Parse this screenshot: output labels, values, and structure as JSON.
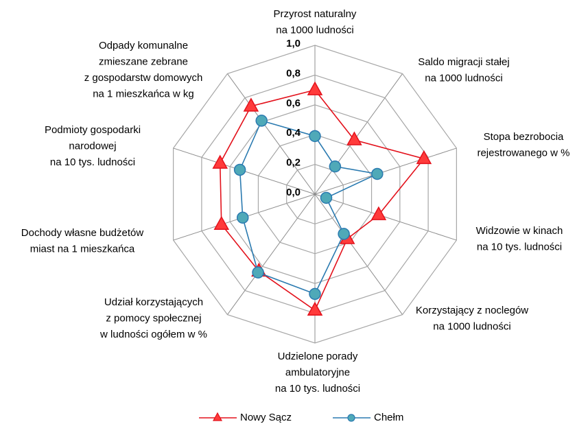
{
  "chart_data": {
    "type": "radar",
    "categories": [
      [
        "Przyrost naturalny",
        "na 1000 ludności"
      ],
      [
        "Saldo migracji stałej",
        "na 1000 ludności"
      ],
      [
        "Stopa bezrobocia",
        "rejestrowanego w %"
      ],
      [
        "Widzowie w kinach",
        "na 10 tys. ludności"
      ],
      [
        "Korzystający z noclegów",
        "na 1000 ludności"
      ],
      [
        "Udzielone porady",
        "ambulatoryjne",
        "na 10 tys. ludności"
      ],
      [
        "Udział korzystających",
        "z pomocy społecznej",
        "w ludności ogółem w %"
      ],
      [
        "Dochody własne budżetów",
        "miast na 1 mieszkańca"
      ],
      [
        "Podmioty gospodarki",
        "narodowej",
        "na 10 tys. ludności"
      ],
      [
        "Odpady komunalne",
        "zmieszane zebrane",
        "z gospodarstw domowych",
        "na 1 mieszkańca w kg"
      ]
    ],
    "series": [
      {
        "name": "Nowy Sącz",
        "color": "#e3111b",
        "marker": "triangle",
        "marker_color": "#ff3b3b",
        "values": [
          0.7,
          0.45,
          0.77,
          0.45,
          0.37,
          0.78,
          0.64,
          0.66,
          0.67,
          0.73
        ]
      },
      {
        "name": "Chełm",
        "color": "#2a7ab0",
        "marker": "circle",
        "marker_color": "#4fa9b8",
        "values": [
          0.39,
          0.23,
          0.44,
          0.08,
          0.33,
          0.67,
          0.65,
          0.51,
          0.53,
          0.61
        ]
      }
    ],
    "rlim": [
      0,
      1
    ],
    "rticks": [
      {
        "value": 0,
        "label": "0,0"
      },
      {
        "value": 0.2,
        "label": "0,2"
      },
      {
        "value": 0.4,
        "label": "0,4"
      },
      {
        "value": 0.6,
        "label": "0,6"
      },
      {
        "value": 0.8,
        "label": "0,8"
      },
      {
        "value": 1,
        "label": "1,0"
      }
    ],
    "grid": true,
    "legend": "bottom"
  }
}
